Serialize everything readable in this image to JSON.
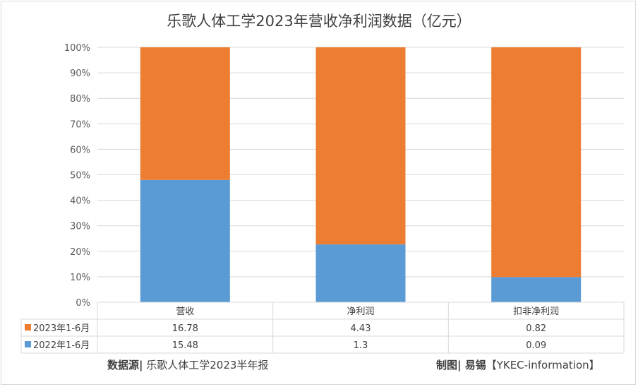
{
  "chart_data": {
    "type": "bar",
    "stacked": "percent",
    "title": "乐歌人体工学2023年营收净利润数据（亿元）",
    "categories": [
      "营收",
      "净利润",
      "扣非净利润"
    ],
    "series": [
      {
        "name": "2023年1-6月",
        "values": [
          16.78,
          4.43,
          0.82
        ],
        "display": [
          "16.78",
          "4.43",
          "0.82"
        ],
        "color": "#ed7d31"
      },
      {
        "name": "2022年1-6月",
        "values": [
          15.48,
          1.3,
          0.09
        ],
        "display": [
          "15.48",
          "1.3",
          "0.09"
        ],
        "color": "#5b9bd5"
      }
    ],
    "yticks": [
      "0%",
      "10%",
      "20%",
      "30%",
      "40%",
      "50%",
      "60%",
      "70%",
      "80%",
      "90%",
      "100%"
    ],
    "ylim": [
      0,
      100
    ],
    "grid": true,
    "legend": "data-table"
  },
  "footer": {
    "source_label": "数据源|",
    "source_text": " 乐歌人体工学2023半年报",
    "credit_label": "制图| 易锡",
    "credit_text": "【YKEC-information】"
  }
}
